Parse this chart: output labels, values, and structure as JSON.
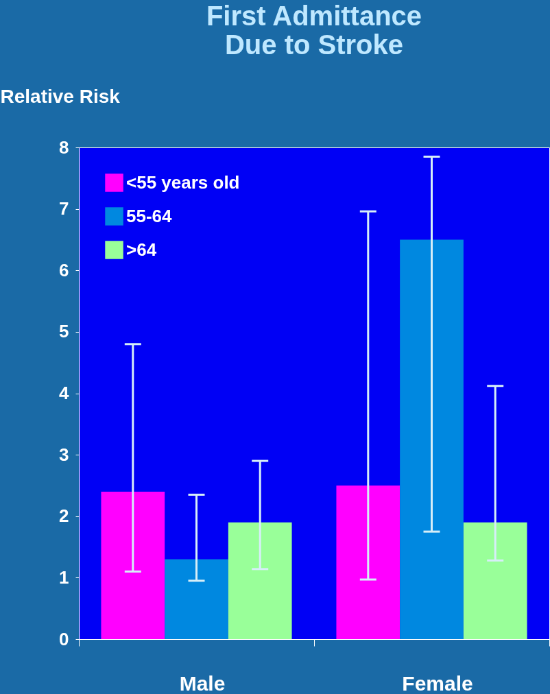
{
  "chart_data": {
    "type": "bar",
    "title": [
      "First Admittance",
      "Due to Stroke"
    ],
    "ylabel": "Relative Risk",
    "categories": [
      "Male",
      "Female"
    ],
    "series": [
      {
        "name": "<55 years old",
        "color": "#ff00ff",
        "values": [
          2.4,
          2.5
        ],
        "errors": [
          [
            1.1,
            4.8
          ],
          [
            0.97,
            6.96
          ]
        ]
      },
      {
        "name": "55-64",
        "color": "#0088e0",
        "values": [
          1.3,
          6.5
        ],
        "errors": [
          [
            0.95,
            2.35
          ],
          [
            1.75,
            7.85
          ]
        ]
      },
      {
        "name": ">64",
        "color": "#99ff99",
        "values": [
          1.9,
          1.9
        ],
        "errors": [
          [
            1.14,
            2.9
          ],
          [
            1.28,
            4.12
          ]
        ]
      }
    ],
    "ylim": [
      0,
      8
    ],
    "yticks": [
      0,
      1,
      2,
      3,
      4,
      5,
      6,
      7,
      8
    ],
    "grid": false,
    "legend": "top left"
  }
}
